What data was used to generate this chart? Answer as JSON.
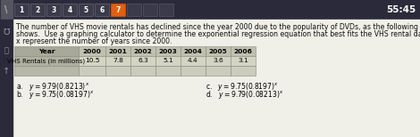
{
  "timer": "55:45",
  "tab_numbers": [
    1,
    2,
    3,
    4,
    5,
    6,
    7
  ],
  "active_tab": 7,
  "body_text_line1": "The number of VHS movie rentals has declined since the year 2000 due to the popularity of DVDs, as the following table",
  "body_text_line2": "shows.  Use a graphing calculator to determine the exponential regression equation that best fits the VHS rental data.  Let",
  "body_text_line3": "x represent the number of years since 2000.",
  "table_headers": [
    "Year",
    "2000",
    "2001",
    "2002",
    "2003",
    "2004",
    "2005",
    "2006"
  ],
  "table_row_label": "VHS Rentals (in millions)",
  "table_values": [
    "10.5",
    "7.8",
    "6.3",
    "5.1",
    "4.4",
    "3.6",
    "3.1"
  ],
  "answer_a": "a.   $y=9.79(0.8213)^x$",
  "answer_b": "b.   $y=9.75(0.08197)^x$",
  "answer_c": "c.   $y=9.75(0.8197)^x$",
  "answer_d": "d.   $y=9.79(0.08213)^x$",
  "top_bar_color": "#2a2a3a",
  "tab_active_color": "#e06010",
  "tab_inactive_color": "#3a3a4a",
  "tab_border_color": "#c05010",
  "content_bg": "#f0f0e8",
  "left_bar_color": "#2a2a3a",
  "table_header_bg": "#b8b8a8",
  "table_data_bg": "#d0d0c0",
  "table_empty_bg": "#c8c8b8",
  "font_size_body": 5.6,
  "font_size_table": 5.4,
  "font_size_answers": 5.5,
  "font_size_timer": 7.5,
  "font_size_tab": 5.5
}
